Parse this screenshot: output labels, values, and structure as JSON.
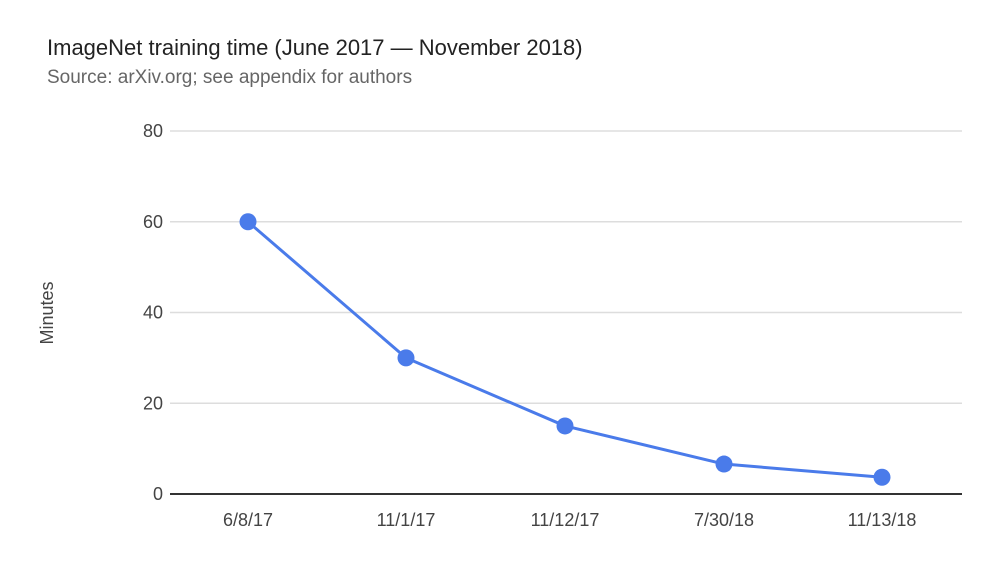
{
  "chart_data": {
    "type": "line",
    "title": "ImageNet training time (June 2017 — November 2018)",
    "subtitle": "Source: arXiv.org; see appendix for authors",
    "xlabel": "",
    "ylabel": "Minutes",
    "categories": [
      "6/8/17",
      "11/1/17",
      "11/12/17",
      "7/30/18",
      "11/13/18"
    ],
    "series": [
      {
        "values": [
          60,
          30,
          15,
          6.6,
          3.7
        ],
        "color": "#4a7bea"
      }
    ],
    "ylim": [
      0,
      80
    ],
    "yticks": [
      0,
      20,
      40,
      60,
      80
    ],
    "grid": true,
    "legend": "none",
    "colors": {
      "line": "#4a7bea",
      "grid": "#dddddd",
      "baseline": "#333333"
    }
  }
}
